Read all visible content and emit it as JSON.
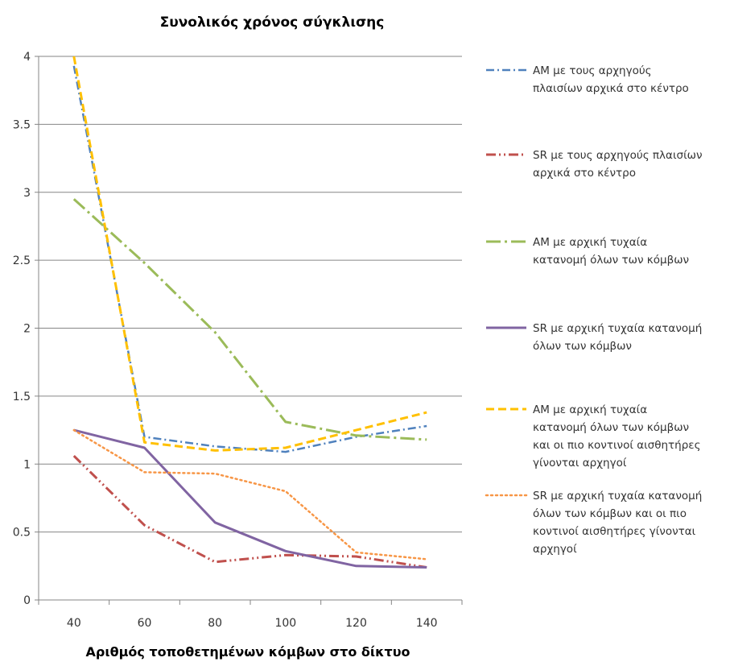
{
  "chart_data": {
    "type": "line",
    "title": "Συνολικός χρόνος σύγκλισης",
    "xlabel": "Αριθμός τοποθετημένων κόμβων στο δίκτυο",
    "ylabel": "",
    "categories": [
      "40",
      "60",
      "80",
      "100",
      "120",
      "140"
    ],
    "ylim": [
      0,
      4
    ],
    "yticks": [
      "0",
      "0.5",
      "1",
      "1.5",
      "2",
      "2.5",
      "3",
      "3.5",
      "4"
    ],
    "grid": true,
    "legend_position": "right",
    "series": [
      {
        "name": "AM με τους αρχηγούς πλαισίων αρχικά στο κέντρο",
        "legend_lines": [
          "AM με τους αρχηγούς",
          "πλαισίων αρχικά στο κέντρο"
        ],
        "color": "#4F81BD",
        "dash": "dashdot",
        "values": [
          3.93,
          1.2,
          1.13,
          1.09,
          1.2,
          1.28
        ]
      },
      {
        "name": "SR με τους αρχηγούς πλαισίων αρχικά στο κέντρο",
        "legend_lines": [
          "SR με τους αρχηγούς πλαισίων",
          "αρχικά στο κέντρο"
        ],
        "color": "#C0504D",
        "dash": "dashdotdot",
        "values": [
          1.06,
          0.55,
          0.28,
          0.33,
          0.32,
          0.24
        ]
      },
      {
        "name": "AM με αρχική τυχαία κατανομή όλων των κόμβων",
        "legend_lines": [
          "AM με αρχική τυχαία",
          "κατανομή όλων των κόμβων"
        ],
        "color": "#9BBB59",
        "dash": "longdashdot",
        "values": [
          2.95,
          2.48,
          1.97,
          1.31,
          1.21,
          1.18
        ]
      },
      {
        "name": "SR με αρχική τυχαία κατανομή όλων των κόμβων",
        "legend_lines": [
          "SR με αρχική τυχαία κατανομή",
          "όλων των κόμβων"
        ],
        "color": "#8064A2",
        "dash": "solid",
        "values": [
          1.25,
          1.12,
          0.57,
          0.36,
          0.25,
          0.24
        ]
      },
      {
        "name": "AM με αρχική τυχαία κατανομή όλων των κόμβων και οι πιο κοντινοί αισθητήρες γίνονται αρχηγοί",
        "legend_lines": [
          "AM με αρχική τυχαία",
          "κατανομή όλων των κόμβων",
          "και οι πιο κοντινοί αισθητήρες",
          "γίνονται αρχηγοί"
        ],
        "color": "#FFC000",
        "dash": "dash",
        "values": [
          4.0,
          1.16,
          1.1,
          1.12,
          1.25,
          1.38
        ]
      },
      {
        "name": "SR με αρχική τυχαία κατανομή όλων των κόμβων και οι πιο κοντινοί αισθητήρες γίνονται αρχηγοί",
        "legend_lines": [
          "SR με αρχική τυχαία κατανομή",
          "όλων των κόμβων και οι πιο",
          "κοντινοί αισθητήρες γίνονται",
          "αρχηγοί"
        ],
        "color": "#F79646",
        "dash": "dot",
        "values": [
          1.25,
          0.94,
          0.93,
          0.8,
          0.35,
          0.3
        ]
      }
    ]
  }
}
